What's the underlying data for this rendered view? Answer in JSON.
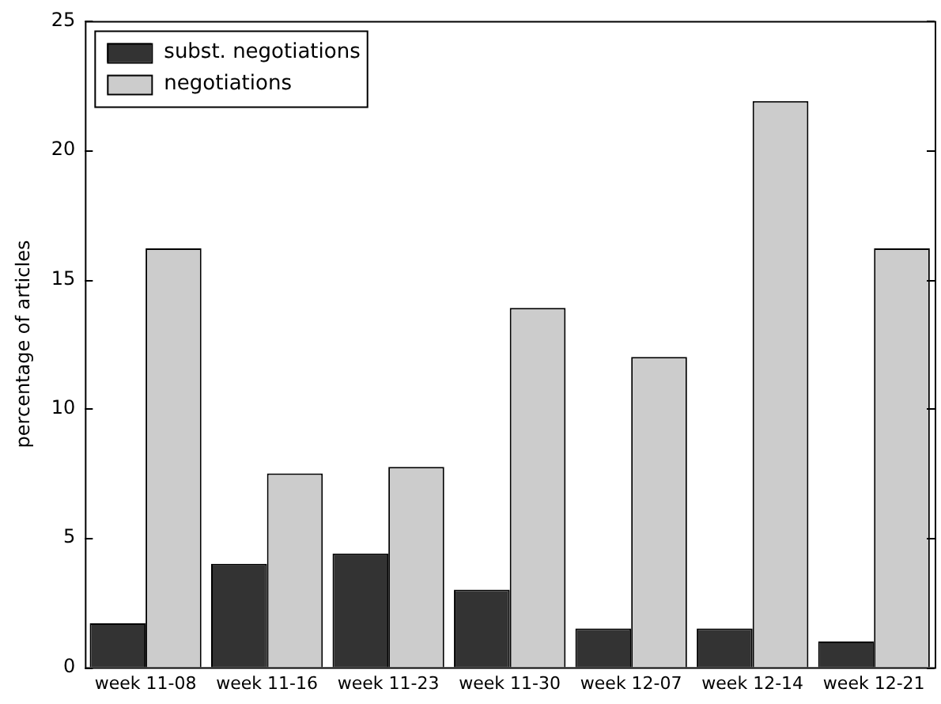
{
  "chart_data": {
    "type": "bar",
    "ylabel": "percentage of articles",
    "categories": [
      "week 11-08",
      "week 11-16",
      "week 11-23",
      "week 11-30",
      "week 12-07",
      "week 12-14",
      "week 12-21"
    ],
    "series": [
      {
        "name": "subst. negotiations",
        "color": "#333333",
        "values": [
          1.7,
          4.0,
          4.4,
          3.0,
          1.5,
          1.5,
          1.0
        ]
      },
      {
        "name": "negotiations",
        "color": "#cccccc",
        "values": [
          16.2,
          7.5,
          7.75,
          13.9,
          12.0,
          21.9,
          16.2
        ]
      }
    ],
    "ylim": [
      0,
      25
    ],
    "yticks": [
      0,
      5,
      10,
      15,
      20,
      25
    ],
    "grid": false,
    "legend": "top left"
  }
}
